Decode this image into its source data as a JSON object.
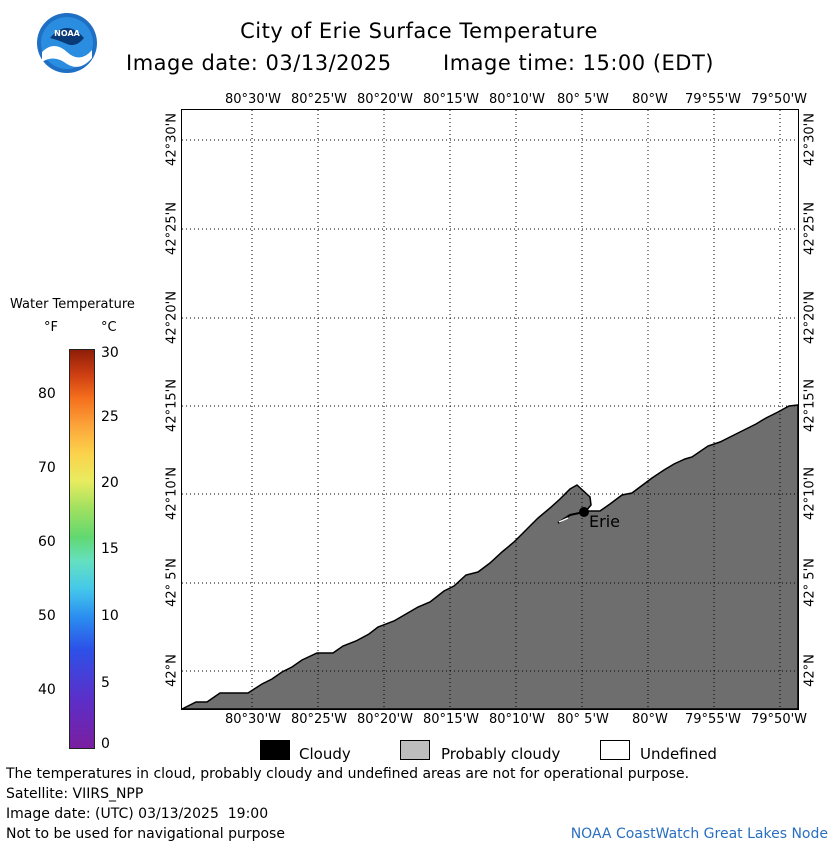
{
  "header": {
    "title": "City of Erie Surface Temperature",
    "image_date": "Image date: 03/13/2025",
    "image_time": "Image time: 15:00 (EDT)"
  },
  "logo": {
    "text": "NOAA"
  },
  "colorbar": {
    "title": "Water Temperature",
    "unit_f": "°F",
    "unit_c": "°C",
    "f_ticks": [
      "80",
      "70",
      "60",
      "50",
      "40"
    ],
    "c_ticks": [
      "30",
      "25",
      "20",
      "15",
      "10",
      "5",
      "0"
    ]
  },
  "map": {
    "lon_labels": [
      "80°30'W",
      "80°25'W",
      "80°20'W",
      "80°15'W",
      "80°10'W",
      "80° 5'W",
      "80°W",
      "79°55'W",
      "79°50'W"
    ],
    "lat_labels": [
      "42°30'N",
      "42°25'N",
      "42°20'N",
      "42°15'N",
      "42°10'N",
      "42° 5'N",
      "42°N"
    ],
    "city_label": "Erie",
    "land_color": "#6e6e6e",
    "water_color": "#ffffff"
  },
  "legend": {
    "items": [
      {
        "label": "Cloudy",
        "color": "#000000"
      },
      {
        "label": "Probably cloudy",
        "color": "#bdbdbd"
      },
      {
        "label": "Undefined",
        "color": "#ffffff"
      }
    ]
  },
  "footer": {
    "note": "The temperatures in cloud, probably cloudy and undefined areas are not for operational purpose.",
    "satellite": "Satellite: VIIRS_NPP",
    "utc_date": "Image date: (UTC) 03/13/2025  19:00",
    "nav_warning": "Not to be used for navigational purpose",
    "credit": "NOAA CoastWatch Great Lakes Node"
  }
}
